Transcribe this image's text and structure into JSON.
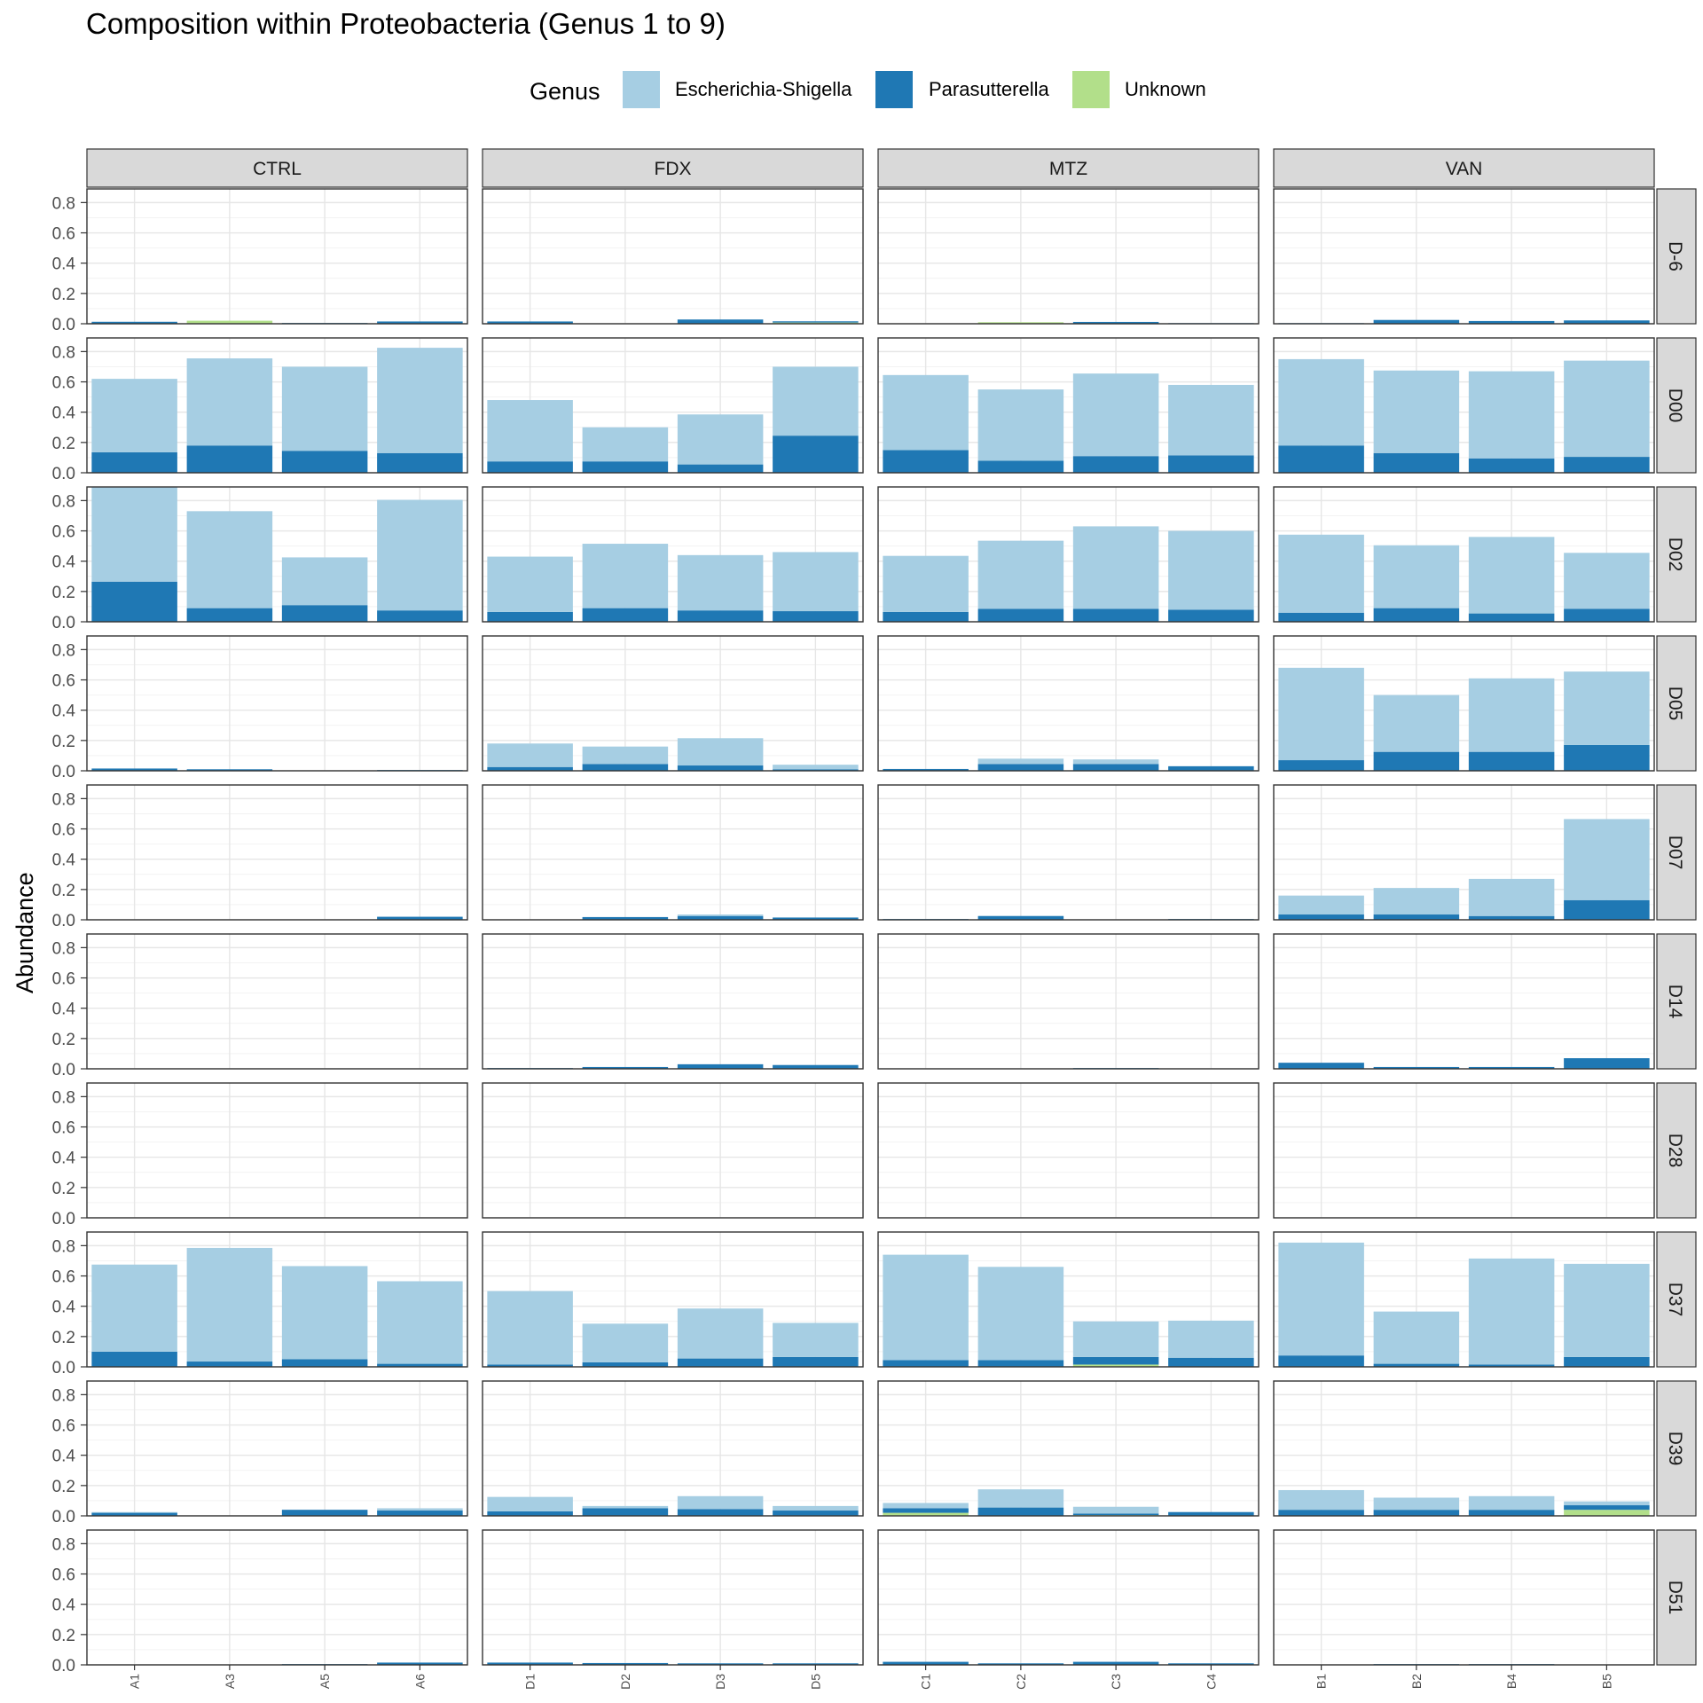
{
  "chart_data": {
    "type": "bar",
    "stacked": true,
    "title": "Composition within Proteobacteria (Genus 1 to 9)",
    "xlabel": "",
    "ylabel": "Abundance",
    "ylim": [
      0,
      0.89
    ],
    "yticks": [
      0.0,
      0.2,
      0.4,
      0.6,
      0.8
    ],
    "ytick_labels": [
      "0.0",
      "0.2",
      "0.4",
      "0.6",
      "0.8"
    ],
    "grid": true,
    "legend": {
      "title": "Genus",
      "position": "top",
      "entries": [
        {
          "name": "Escherichia-Shigella",
          "color": "#a6cee3"
        },
        {
          "name": "Parasutterella",
          "color": "#1f78b4"
        },
        {
          "name": "Unknown",
          "color": "#b2df8a"
        }
      ]
    },
    "facet_columns": [
      {
        "label": "CTRL",
        "samples": [
          "A1",
          "A3",
          "A5",
          "A6"
        ]
      },
      {
        "label": "FDX",
        "samples": [
          "D1",
          "D2",
          "D3",
          "D5"
        ]
      },
      {
        "label": "MTZ",
        "samples": [
          "C1",
          "C2",
          "C3",
          "C4"
        ]
      },
      {
        "label": "VAN",
        "samples": [
          "B1",
          "B2",
          "B4",
          "B5"
        ]
      }
    ],
    "facet_rows": [
      "D-6",
      "D00",
      "D02",
      "D05",
      "D07",
      "D14",
      "D28",
      "D37",
      "D39",
      "D51"
    ],
    "series_order": [
      "Unknown",
      "Parasutterella",
      "Escherichia-Shigella"
    ],
    "panels": {
      "D-6": {
        "CTRL": [
          [
            0,
            0.013,
            0
          ],
          [
            0.02,
            0,
            0
          ],
          [
            0,
            0.005,
            0
          ],
          [
            0,
            0.015,
            0
          ]
        ],
        "FDX": [
          [
            0,
            0.015,
            0
          ],
          [
            0,
            0,
            0
          ],
          [
            0,
            0.028,
            0
          ],
          [
            0.008,
            0.008,
            0
          ]
        ],
        "MTZ": [
          [
            0,
            0,
            0
          ],
          [
            0.01,
            0,
            0
          ],
          [
            0,
            0.012,
            0
          ],
          [
            0,
            0.004,
            0
          ]
        ],
        "VAN": [
          [
            0,
            0.004,
            0
          ],
          [
            0,
            0.025,
            0
          ],
          [
            0,
            0.018,
            0
          ],
          [
            0,
            0.022,
            0
          ]
        ]
      },
      "D00": {
        "CTRL": [
          [
            0,
            0.135,
            0.485
          ],
          [
            0,
            0.18,
            0.575
          ],
          [
            0,
            0.145,
            0.555
          ],
          [
            0,
            0.13,
            0.695
          ]
        ],
        "FDX": [
          [
            0,
            0.075,
            0.405
          ],
          [
            0,
            0.075,
            0.225
          ],
          [
            0,
            0.055,
            0.33
          ],
          [
            0,
            0.245,
            0.455
          ]
        ],
        "MTZ": [
          [
            0,
            0.15,
            0.495
          ],
          [
            0,
            0.08,
            0.47
          ],
          [
            0,
            0.11,
            0.545
          ],
          [
            0,
            0.115,
            0.465
          ]
        ],
        "VAN": [
          [
            0,
            0.18,
            0.57
          ],
          [
            0,
            0.13,
            0.545
          ],
          [
            0,
            0.095,
            0.575
          ],
          [
            0,
            0.105,
            0.635
          ]
        ]
      },
      "D02": {
        "CTRL": [
          [
            0,
            0.265,
            0.625
          ],
          [
            0,
            0.09,
            0.64
          ],
          [
            0,
            0.11,
            0.315
          ],
          [
            0,
            0.075,
            0.73
          ]
        ],
        "FDX": [
          [
            0,
            0.065,
            0.365
          ],
          [
            0,
            0.09,
            0.425
          ],
          [
            0,
            0.075,
            0.365
          ],
          [
            0,
            0.07,
            0.39
          ]
        ],
        "MTZ": [
          [
            0,
            0.065,
            0.37
          ],
          [
            0,
            0.085,
            0.45
          ],
          [
            0,
            0.085,
            0.545
          ],
          [
            0,
            0.08,
            0.52
          ]
        ],
        "VAN": [
          [
            0,
            0.06,
            0.515
          ],
          [
            0,
            0.09,
            0.415
          ],
          [
            0,
            0.055,
            0.505
          ],
          [
            0,
            0.085,
            0.37
          ]
        ]
      },
      "D05": {
        "CTRL": [
          [
            0,
            0.015,
            0
          ],
          [
            0,
            0.01,
            0
          ],
          [
            0,
            0,
            0
          ],
          [
            0,
            0.005,
            0
          ]
        ],
        "FDX": [
          [
            0,
            0.025,
            0.155
          ],
          [
            0,
            0.045,
            0.115
          ],
          [
            0,
            0.035,
            0.18
          ],
          [
            0,
            0.01,
            0.03
          ]
        ],
        "MTZ": [
          [
            0,
            0.012,
            0
          ],
          [
            0,
            0.045,
            0.035
          ],
          [
            0,
            0.045,
            0.03
          ],
          [
            0,
            0.03,
            0
          ]
        ],
        "VAN": [
          [
            0,
            0.07,
            0.61
          ],
          [
            0,
            0.125,
            0.375
          ],
          [
            0,
            0.125,
            0.485
          ],
          [
            0,
            0.17,
            0.485
          ]
        ]
      },
      "D07": {
        "CTRL": [
          [
            0,
            0,
            0
          ],
          [
            0,
            0,
            0
          ],
          [
            0,
            0,
            0
          ],
          [
            0,
            0.02,
            0
          ]
        ],
        "FDX": [
          [
            0,
            0,
            0
          ],
          [
            0,
            0.018,
            0
          ],
          [
            0,
            0.025,
            0.01
          ],
          [
            0,
            0.015,
            0
          ]
        ],
        "MTZ": [
          [
            0,
            0.005,
            0
          ],
          [
            0,
            0.025,
            0
          ],
          [
            0,
            0,
            0
          ],
          [
            0,
            0.005,
            0
          ]
        ],
        "VAN": [
          [
            0,
            0.035,
            0.125
          ],
          [
            0,
            0.035,
            0.175
          ],
          [
            0,
            0.025,
            0.245
          ],
          [
            0,
            0.13,
            0.535
          ]
        ]
      },
      "D14": {
        "CTRL": [
          [
            0,
            0,
            0
          ],
          [
            0,
            0,
            0
          ],
          [
            0,
            0,
            0
          ],
          [
            0,
            0,
            0
          ]
        ],
        "FDX": [
          [
            0,
            0.005,
            0
          ],
          [
            0,
            0.012,
            0
          ],
          [
            0,
            0.03,
            0
          ],
          [
            0,
            0.025,
            0
          ]
        ],
        "MTZ": [
          [
            0,
            0,
            0
          ],
          [
            0,
            0,
            0
          ],
          [
            0,
            0.005,
            0
          ],
          [
            0,
            0,
            0
          ]
        ],
        "VAN": [
          [
            0,
            0.04,
            0
          ],
          [
            0,
            0.012,
            0
          ],
          [
            0,
            0.012,
            0
          ],
          [
            0,
            0.07,
            0
          ]
        ]
      },
      "D28": {
        "CTRL": [
          [
            0,
            0,
            0
          ],
          [
            0,
            0,
            0
          ],
          [
            0,
            0,
            0
          ],
          [
            0,
            0,
            0
          ]
        ],
        "FDX": [
          [
            0,
            0,
            0
          ],
          [
            0,
            0,
            0
          ],
          [
            0,
            0,
            0
          ],
          [
            0,
            0,
            0
          ]
        ],
        "MTZ": [
          [
            0,
            0,
            0
          ],
          [
            0,
            0,
            0
          ],
          [
            0,
            0,
            0
          ],
          [
            0,
            0,
            0
          ]
        ],
        "VAN": [
          [
            0,
            0,
            0
          ],
          [
            0,
            0,
            0
          ],
          [
            0,
            0,
            0
          ],
          [
            0,
            0,
            0
          ]
        ]
      },
      "D37": {
        "CTRL": [
          [
            0,
            0.1,
            0.575
          ],
          [
            0,
            0.035,
            0.75
          ],
          [
            0,
            0.05,
            0.615
          ],
          [
            0,
            0.02,
            0.545
          ]
        ],
        "FDX": [
          [
            0,
            0.015,
            0.485
          ],
          [
            0,
            0.03,
            0.255
          ],
          [
            0,
            0.055,
            0.33
          ],
          [
            0,
            0.065,
            0.225
          ]
        ],
        "MTZ": [
          [
            0,
            0.045,
            0.695
          ],
          [
            0,
            0.045,
            0.615
          ],
          [
            0.015,
            0.05,
            0.235
          ],
          [
            0,
            0.06,
            0.245
          ]
        ],
        "VAN": [
          [
            0,
            0.075,
            0.745
          ],
          [
            0,
            0.02,
            0.345
          ],
          [
            0,
            0.015,
            0.7
          ],
          [
            0,
            0.065,
            0.615
          ]
        ]
      },
      "D39": {
        "CTRL": [
          [
            0,
            0.02,
            0.005
          ],
          [
            0,
            0,
            0
          ],
          [
            0,
            0.04,
            0
          ],
          [
            0,
            0.035,
            0.015
          ]
        ],
        "FDX": [
          [
            0,
            0.03,
            0.095
          ],
          [
            0,
            0.05,
            0.015
          ],
          [
            0,
            0.045,
            0.085
          ],
          [
            0,
            0.035,
            0.03
          ]
        ],
        "MTZ": [
          [
            0.02,
            0.03,
            0.035
          ],
          [
            0,
            0.055,
            0.12
          ],
          [
            0.005,
            0.01,
            0.045
          ],
          [
            0,
            0.025,
            0
          ]
        ],
        "VAN": [
          [
            0,
            0.04,
            0.13
          ],
          [
            0,
            0.04,
            0.08
          ],
          [
            0,
            0.04,
            0.09
          ],
          [
            0.04,
            0.03,
            0.025
          ]
        ]
      },
      "D51": {
        "CTRL": [
          [
            0,
            0,
            0
          ],
          [
            0,
            0,
            0
          ],
          [
            0,
            0.005,
            0
          ],
          [
            0,
            0.015,
            0
          ]
        ],
        "FDX": [
          [
            0,
            0.015,
            0
          ],
          [
            0,
            0.012,
            0
          ],
          [
            0,
            0.01,
            0
          ],
          [
            0,
            0.01,
            0
          ]
        ],
        "MTZ": [
          [
            0,
            0.02,
            0
          ],
          [
            0,
            0.01,
            0
          ],
          [
            0,
            0.02,
            0
          ],
          [
            0,
            0.01,
            0
          ]
        ],
        "VAN": [
          [
            0,
            0,
            0
          ],
          [
            0,
            0.005,
            0
          ],
          [
            0,
            0.005,
            0
          ],
          [
            0,
            0,
            0
          ]
        ]
      }
    }
  }
}
